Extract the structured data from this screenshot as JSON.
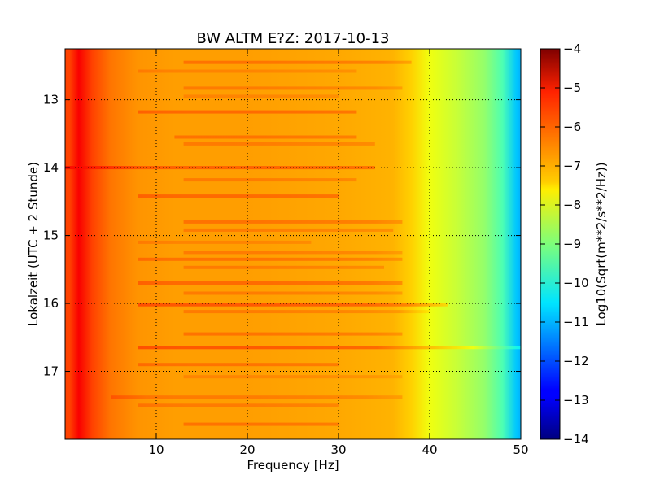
{
  "chart_data": {
    "type": "heatmap",
    "title": "BW ALTM E?Z: 2017-10-13",
    "xlabel": "Frequency [Hz]",
    "ylabel": "Lokalzeit (UTC + 2 Stunde)",
    "xlim": [
      0,
      50
    ],
    "ylim_hours": [
      12.25,
      18.0
    ],
    "y_inverted": true,
    "x_ticks": [
      10,
      20,
      30,
      40,
      50
    ],
    "y_ticks": [
      13,
      14,
      15,
      16,
      17
    ],
    "grid": true,
    "grid_style": "dotted",
    "colormap": "jet",
    "colorbar": {
      "label": "Log10(Sqrt(m**2/s**2/Hz))",
      "vmin": -14,
      "vmax": -4,
      "ticks": [
        -4,
        -5,
        -6,
        -7,
        -8,
        -9,
        -10,
        -11,
        -12,
        -13,
        -14
      ]
    },
    "spectrum_profile": [
      {
        "hz": 0.5,
        "value": -5.9
      },
      {
        "hz": 1.5,
        "value": -5.2
      },
      {
        "hz": 3,
        "value": -5.9
      },
      {
        "hz": 5,
        "value": -6.4
      },
      {
        "hz": 8,
        "value": -6.7
      },
      {
        "hz": 12,
        "value": -6.8
      },
      {
        "hz": 20,
        "value": -6.8
      },
      {
        "hz": 30,
        "value": -6.9
      },
      {
        "hz": 36,
        "value": -7.0
      },
      {
        "hz": 38,
        "value": -7.3
      },
      {
        "hz": 40,
        "value": -7.9
      },
      {
        "hz": 43,
        "value": -8.3
      },
      {
        "hz": 46,
        "value": -8.8
      },
      {
        "hz": 48,
        "value": -9.5
      },
      {
        "hz": 49.5,
        "value": -10.8
      },
      {
        "hz": 50,
        "value": -11.0
      }
    ],
    "horizontal_bands": [
      {
        "hour": 12.45,
        "x_from": 13,
        "x_to": 38,
        "offset": 0.5
      },
      {
        "hour": 12.58,
        "x_from": 8,
        "x_to": 32,
        "offset": 0.3
      },
      {
        "hour": 12.83,
        "x_from": 13,
        "x_to": 37,
        "offset": 0.4
      },
      {
        "hour": 12.95,
        "x_from": 13,
        "x_to": 30,
        "offset": 0.3
      },
      {
        "hour": 13.18,
        "x_from": 8,
        "x_to": 32,
        "offset": 0.6
      },
      {
        "hour": 13.55,
        "x_from": 12,
        "x_to": 32,
        "offset": 0.5
      },
      {
        "hour": 13.65,
        "x_from": 13,
        "x_to": 34,
        "offset": 0.4
      },
      {
        "hour": 14.0,
        "x_from": 0,
        "x_to": 34,
        "offset": 0.7
      },
      {
        "hour": 14.18,
        "x_from": 13,
        "x_to": 32,
        "offset": 0.4
      },
      {
        "hour": 14.42,
        "x_from": 8,
        "x_to": 30,
        "offset": 0.6
      },
      {
        "hour": 14.8,
        "x_from": 13,
        "x_to": 37,
        "offset": 0.5
      },
      {
        "hour": 14.92,
        "x_from": 13,
        "x_to": 36,
        "offset": 0.4
      },
      {
        "hour": 15.1,
        "x_from": 8,
        "x_to": 27,
        "offset": 0.3
      },
      {
        "hour": 15.25,
        "x_from": 13,
        "x_to": 37,
        "offset": 0.4
      },
      {
        "hour": 15.35,
        "x_from": 8,
        "x_to": 37,
        "offset": 0.5
      },
      {
        "hour": 15.47,
        "x_from": 13,
        "x_to": 35,
        "offset": 0.4
      },
      {
        "hour": 15.7,
        "x_from": 8,
        "x_to": 37,
        "offset": 0.6
      },
      {
        "hour": 15.85,
        "x_from": 13,
        "x_to": 37,
        "offset": 0.4
      },
      {
        "hour": 16.02,
        "x_from": 8,
        "x_to": 42,
        "offset": 0.8
      },
      {
        "hour": 16.12,
        "x_from": 13,
        "x_to": 40,
        "offset": 0.4
      },
      {
        "hour": 16.45,
        "x_from": 13,
        "x_to": 37,
        "offset": 0.5
      },
      {
        "hour": 16.65,
        "x_from": 8,
        "x_to": 50,
        "offset": 0.8
      },
      {
        "hour": 16.9,
        "x_from": 8,
        "x_to": 30,
        "offset": 0.5
      },
      {
        "hour": 17.08,
        "x_from": 13,
        "x_to": 37,
        "offset": 0.3
      },
      {
        "hour": 17.38,
        "x_from": 5,
        "x_to": 37,
        "offset": 0.4
      },
      {
        "hour": 17.5,
        "x_from": 8,
        "x_to": 30,
        "offset": 0.4
      },
      {
        "hour": 17.78,
        "x_from": 13,
        "x_to": 30,
        "offset": 0.5
      }
    ]
  }
}
